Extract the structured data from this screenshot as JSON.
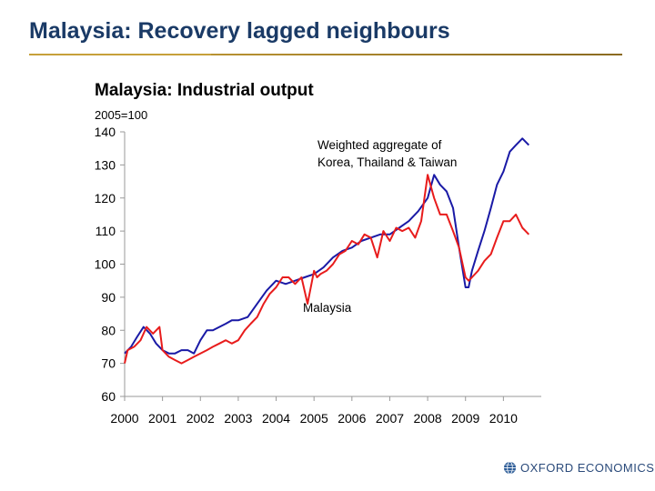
{
  "slide": {
    "title": "Malaysia: Recovery lagged neighbours",
    "brand": "OXFORD ECONOMICS",
    "brand_icon": "globe-icon",
    "accent_color": "#c6a03a",
    "title_color": "#1a3a66"
  },
  "chart_data": {
    "type": "line",
    "title": "Malaysia: Industrial output",
    "unit_label": "2005=100",
    "ylim": [
      60,
      140
    ],
    "yticks": [
      60,
      70,
      80,
      90,
      100,
      110,
      120,
      130,
      140
    ],
    "xlim": [
      2000,
      2011
    ],
    "xticks": [
      2000,
      2001,
      2002,
      2003,
      2004,
      2005,
      2006,
      2007,
      2008,
      2009,
      2010
    ],
    "annotations": [
      "Weighted aggregate of",
      "Korea, Thailand & Taiwan",
      "Malaysia"
    ],
    "series": [
      {
        "name": "Weighted aggregate of Korea, Thailand & Taiwan",
        "color": "#1a1aa6",
        "x": [
          2000.0,
          2000.17,
          2000.33,
          2000.5,
          2000.67,
          2000.83,
          2001.0,
          2001.17,
          2001.33,
          2001.5,
          2001.67,
          2001.83,
          2002.0,
          2002.17,
          2002.33,
          2002.5,
          2002.67,
          2002.83,
          2003.0,
          2003.25,
          2003.5,
          2003.75,
          2004.0,
          2004.25,
          2004.5,
          2004.75,
          2005.0,
          2005.25,
          2005.5,
          2005.75,
          2006.0,
          2006.25,
          2006.5,
          2006.75,
          2007.0,
          2007.25,
          2007.5,
          2007.75,
          2008.0,
          2008.17,
          2008.33,
          2008.5,
          2008.67,
          2008.83,
          2009.0,
          2009.08,
          2009.17,
          2009.33,
          2009.5,
          2009.67,
          2009.83,
          2010.0,
          2010.17,
          2010.33,
          2010.5,
          2010.67
        ],
        "y": [
          73,
          75,
          78,
          81,
          79,
          76,
          74,
          73,
          73,
          74,
          74,
          73,
          77,
          80,
          80,
          81,
          82,
          83,
          83,
          84,
          88,
          92,
          95,
          94,
          95,
          96,
          97,
          99,
          102,
          104,
          105,
          107,
          108,
          109,
          109,
          111,
          113,
          116,
          120,
          127,
          124,
          122,
          117,
          105,
          93,
          93,
          98,
          104,
          110,
          117,
          124,
          128,
          134,
          136,
          138,
          136
        ]
      },
      {
        "name": "Malaysia",
        "color": "#e81c1c",
        "x": [
          2000.0,
          2000.08,
          2000.25,
          2000.42,
          2000.58,
          2000.75,
          2000.92,
          2001.0,
          2001.17,
          2001.33,
          2001.5,
          2001.67,
          2001.83,
          2002.0,
          2002.17,
          2002.33,
          2002.5,
          2002.67,
          2002.83,
          2003.0,
          2003.17,
          2003.33,
          2003.5,
          2003.67,
          2003.83,
          2004.0,
          2004.17,
          2004.33,
          2004.5,
          2004.67,
          2004.83,
          2005.0,
          2005.08,
          2005.17,
          2005.33,
          2005.5,
          2005.67,
          2005.83,
          2006.0,
          2006.17,
          2006.33,
          2006.5,
          2006.67,
          2006.83,
          2007.0,
          2007.17,
          2007.33,
          2007.5,
          2007.67,
          2007.83,
          2008.0,
          2008.17,
          2008.33,
          2008.5,
          2008.67,
          2008.83,
          2009.0,
          2009.08,
          2009.17,
          2009.33,
          2009.5,
          2009.67,
          2009.83,
          2010.0,
          2010.17,
          2010.33,
          2010.5,
          2010.67
        ],
        "y": [
          70,
          74,
          75,
          77,
          81,
          79,
          81,
          74,
          72,
          71,
          70,
          71,
          72,
          73,
          74,
          75,
          76,
          77,
          76,
          77,
          80,
          82,
          84,
          88,
          91,
          93,
          96,
          96,
          94,
          96,
          88,
          98,
          96,
          97,
          98,
          100,
          103,
          104,
          107,
          106,
          109,
          108,
          102,
          110,
          107,
          111,
          110,
          111,
          108,
          113,
          127,
          120,
          115,
          115,
          110,
          105,
          96,
          95,
          96,
          98,
          101,
          103,
          108,
          113,
          113,
          115,
          111,
          109
        ]
      }
    ]
  }
}
